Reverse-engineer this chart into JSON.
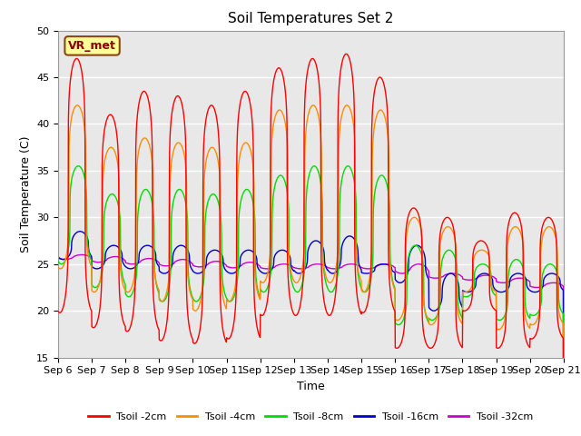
{
  "title": "Soil Temperatures Set 2",
  "xlabel": "Time",
  "ylabel": "Soil Temperature (C)",
  "ylim": [
    15,
    50
  ],
  "xlim": [
    0,
    15
  ],
  "x_tick_labels": [
    "Sep 6",
    "Sep 7",
    "Sep 8",
    "Sep 9",
    "Sep 10",
    "Sep 11",
    "Sep 12",
    "Sep 13",
    "Sep 14",
    "Sep 15",
    "Sep 16",
    "Sep 17",
    "Sep 18",
    "Sep 19",
    "Sep 20",
    "Sep 21"
  ],
  "yticks": [
    15,
    20,
    25,
    30,
    35,
    40,
    45,
    50
  ],
  "annotation_text": "VR_met",
  "annotation_color": "#8B0000",
  "annotation_bg": "#FFFF99",
  "annotation_border": "#8B4513",
  "line_colors": {
    "Tsoil -2cm": "#FF0000",
    "Tsoil -4cm": "#FF8C00",
    "Tsoil -8cm": "#00DD00",
    "Tsoil -16cm": "#0000CC",
    "Tsoil -32cm": "#CC00CC"
  },
  "background_color": "#FFFFFF",
  "plot_bg_color": "#E8E8E8",
  "grid_color": "#FFFFFF",
  "title_fontsize": 11,
  "axis_label_fontsize": 9,
  "tick_fontsize": 8,
  "legend_fontsize": 8,
  "peaks_2": [
    47.0,
    41.0,
    43.5,
    43.0,
    42.0,
    43.5,
    46.0,
    47.0,
    47.5,
    45.0,
    31.0,
    30.0,
    27.5,
    30.5,
    30.0
  ],
  "troughs_2": [
    19.8,
    18.2,
    17.8,
    16.8,
    16.5,
    17.0,
    19.5,
    19.5,
    19.5,
    19.8,
    16.0,
    16.0,
    20.0,
    16.0,
    17.0
  ],
  "peaks_4": [
    42.0,
    37.5,
    38.5,
    38.0,
    37.5,
    38.0,
    41.5,
    42.0,
    42.0,
    41.5,
    30.0,
    29.0,
    26.5,
    29.0,
    29.0
  ],
  "troughs_4": [
    24.5,
    22.0,
    22.0,
    21.0,
    20.0,
    21.0,
    23.0,
    23.0,
    23.0,
    22.0,
    19.0,
    18.5,
    22.0,
    18.0,
    18.5
  ],
  "peaks_8": [
    35.5,
    32.5,
    33.0,
    33.0,
    32.5,
    33.0,
    34.5,
    35.5,
    35.5,
    34.5,
    27.0,
    26.5,
    25.0,
    25.5,
    25.0
  ],
  "troughs_8": [
    25.0,
    22.5,
    21.5,
    21.0,
    21.0,
    21.0,
    22.0,
    22.0,
    22.0,
    22.0,
    18.5,
    19.0,
    21.5,
    19.0,
    19.5
  ],
  "peaks_16": [
    28.5,
    27.0,
    27.0,
    27.0,
    26.5,
    26.5,
    26.5,
    27.5,
    28.0,
    25.0,
    27.0,
    24.0,
    24.0,
    24.0,
    24.0
  ],
  "troughs_16": [
    25.5,
    24.5,
    24.5,
    24.0,
    24.0,
    24.0,
    24.0,
    24.0,
    24.0,
    24.0,
    23.0,
    20.0,
    22.0,
    22.0,
    22.0
  ],
  "peaks_32": [
    26.0,
    25.8,
    25.6,
    25.5,
    25.3,
    25.2,
    25.0,
    25.0,
    25.0,
    25.0,
    25.0,
    24.0,
    23.8,
    23.5,
    23.0
  ],
  "troughs_32": [
    25.5,
    25.2,
    25.0,
    24.8,
    24.7,
    24.6,
    24.5,
    24.5,
    24.5,
    24.5,
    24.0,
    23.5,
    23.3,
    23.0,
    22.5
  ]
}
